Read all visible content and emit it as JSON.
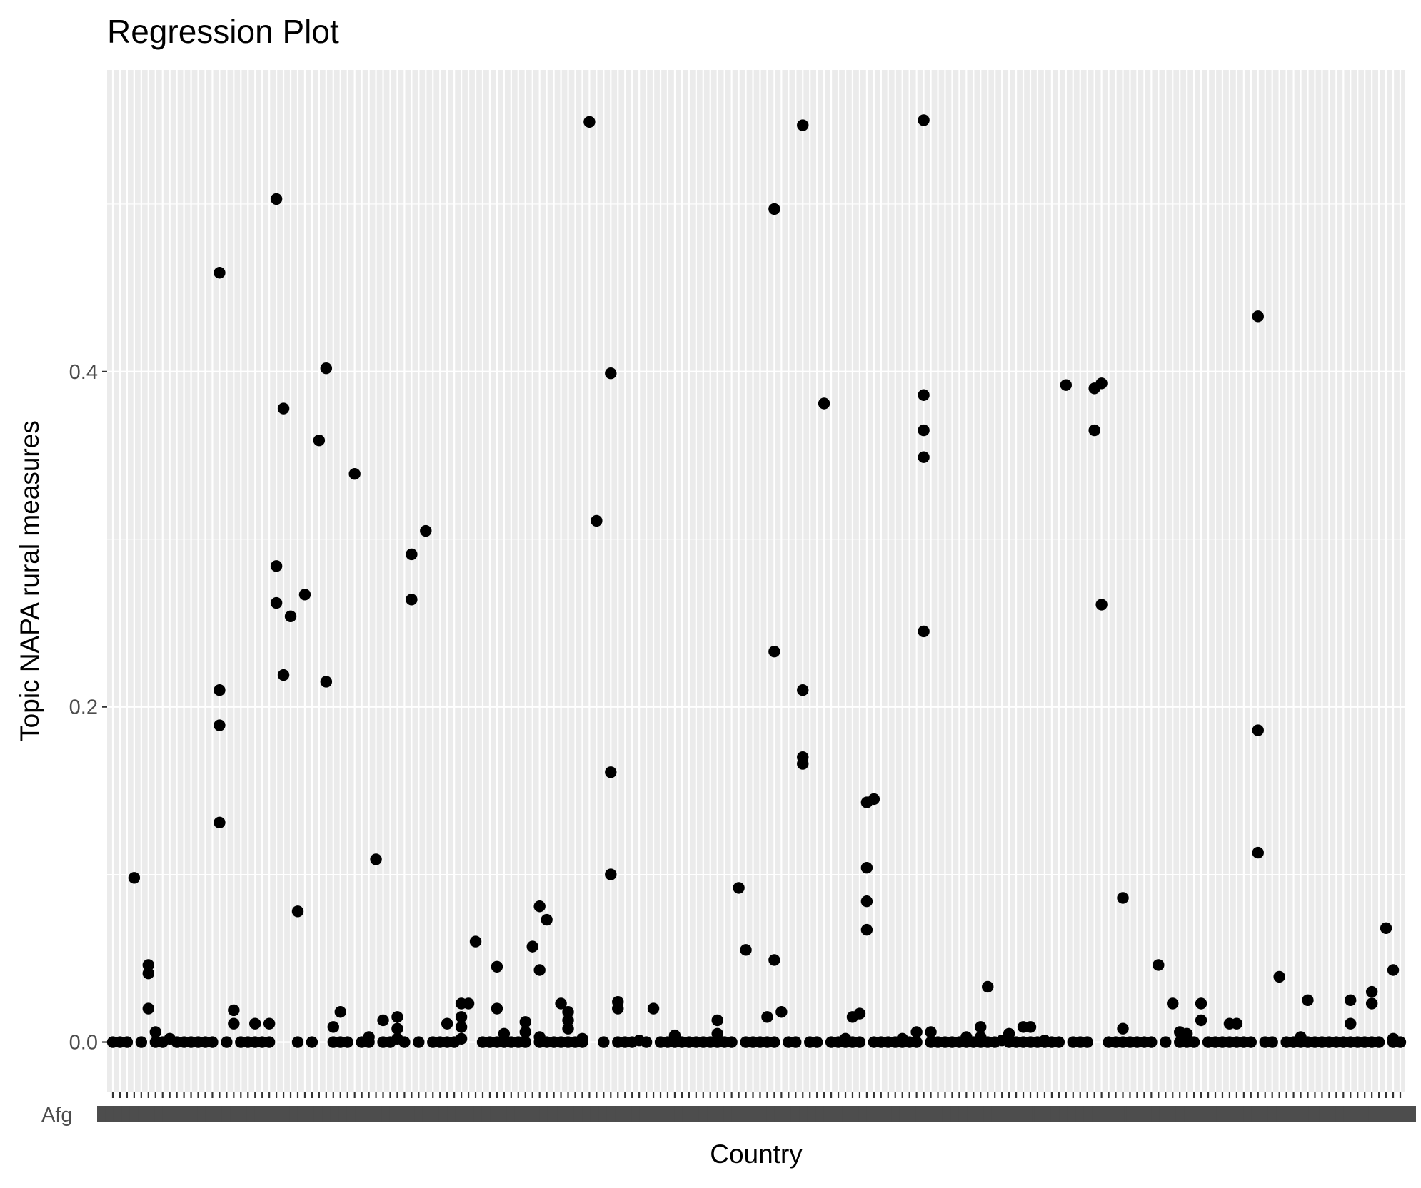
{
  "chart_data": {
    "type": "scatter",
    "title": "Regression Plot",
    "xlabel": "Country",
    "ylabel": "Topic NAPA rural measures",
    "y_ticks": [
      "0.0",
      "0.2",
      "0.4"
    ],
    "ylim": [
      -0.03,
      0.58
    ],
    "x_category_count": 182,
    "x_tick_labels_overlapping": true,
    "first_x_label_visible": "Afg",
    "grid": true,
    "legend": "none",
    "colors": {
      "panel": "#ebebeb",
      "grid": "#ffffff",
      "point": "#000000",
      "tick_text": "#4d4d4d"
    },
    "points": [
      {
        "x": 1,
        "y": 0
      },
      {
        "x": 2,
        "y": 0
      },
      {
        "x": 3,
        "y": 0
      },
      {
        "x": 4,
        "y": 0.098
      },
      {
        "x": 5,
        "y": 0
      },
      {
        "x": 6,
        "y": 0.046
      },
      {
        "x": 6,
        "y": 0.041
      },
      {
        "x": 6,
        "y": 0.02
      },
      {
        "x": 7,
        "y": 0.006
      },
      {
        "x": 7,
        "y": 0
      },
      {
        "x": 8,
        "y": 0
      },
      {
        "x": 9,
        "y": 0.002
      },
      {
        "x": 10,
        "y": 0
      },
      {
        "x": 11,
        "y": 0
      },
      {
        "x": 12,
        "y": 0
      },
      {
        "x": 13,
        "y": 0
      },
      {
        "x": 14,
        "y": 0
      },
      {
        "x": 15,
        "y": 0
      },
      {
        "x": 16,
        "y": 0.459
      },
      {
        "x": 16,
        "y": 0.21
      },
      {
        "x": 16,
        "y": 0.189
      },
      {
        "x": 16,
        "y": 0.131
      },
      {
        "x": 17,
        "y": 0
      },
      {
        "x": 18,
        "y": 0.019
      },
      {
        "x": 18,
        "y": 0.011
      },
      {
        "x": 19,
        "y": 0
      },
      {
        "x": 20,
        "y": 0
      },
      {
        "x": 21,
        "y": 0.011
      },
      {
        "x": 21,
        "y": 0
      },
      {
        "x": 22,
        "y": 0
      },
      {
        "x": 23,
        "y": 0.011
      },
      {
        "x": 23,
        "y": 0
      },
      {
        "x": 24,
        "y": 0.503
      },
      {
        "x": 24,
        "y": 0.284
      },
      {
        "x": 24,
        "y": 0.262
      },
      {
        "x": 25,
        "y": 0.378
      },
      {
        "x": 25,
        "y": 0.219
      },
      {
        "x": 26,
        "y": 0.254
      },
      {
        "x": 27,
        "y": 0.078
      },
      {
        "x": 27,
        "y": 0
      },
      {
        "x": 28,
        "y": 0.267
      },
      {
        "x": 29,
        "y": 0
      },
      {
        "x": 30,
        "y": 0.359
      },
      {
        "x": 31,
        "y": 0.402
      },
      {
        "x": 31,
        "y": 0.215
      },
      {
        "x": 32,
        "y": 0.009
      },
      {
        "x": 32,
        "y": 0
      },
      {
        "x": 33,
        "y": 0.018
      },
      {
        "x": 33,
        "y": 0
      },
      {
        "x": 34,
        "y": 0
      },
      {
        "x": 35,
        "y": 0.339
      },
      {
        "x": 36,
        "y": 0
      },
      {
        "x": 37,
        "y": 0.003
      },
      {
        "x": 37,
        "y": 0
      },
      {
        "x": 38,
        "y": 0.109
      },
      {
        "x": 39,
        "y": 0.013
      },
      {
        "x": 39,
        "y": 0
      },
      {
        "x": 40,
        "y": 0
      },
      {
        "x": 41,
        "y": 0.015
      },
      {
        "x": 41,
        "y": 0.008
      },
      {
        "x": 41,
        "y": 0.002
      },
      {
        "x": 42,
        "y": 0
      },
      {
        "x": 43,
        "y": 0.291
      },
      {
        "x": 43,
        "y": 0.264
      },
      {
        "x": 44,
        "y": 0
      },
      {
        "x": 45,
        "y": 0.305
      },
      {
        "x": 46,
        "y": 0
      },
      {
        "x": 47,
        "y": 0
      },
      {
        "x": 48,
        "y": 0
      },
      {
        "x": 48,
        "y": 0.011
      },
      {
        "x": 49,
        "y": 0
      },
      {
        "x": 50,
        "y": 0.023
      },
      {
        "x": 50,
        "y": 0.015
      },
      {
        "x": 50,
        "y": 0.009
      },
      {
        "x": 50,
        "y": 0.002
      },
      {
        "x": 51,
        "y": 0.023
      },
      {
        "x": 52,
        "y": 0.06
      },
      {
        "x": 53,
        "y": 0
      },
      {
        "x": 54,
        "y": 0
      },
      {
        "x": 55,
        "y": 0.045
      },
      {
        "x": 55,
        "y": 0.02
      },
      {
        "x": 55,
        "y": 0
      },
      {
        "x": 56,
        "y": 0.005
      },
      {
        "x": 56,
        "y": 0
      },
      {
        "x": 57,
        "y": 0
      },
      {
        "x": 58,
        "y": 0
      },
      {
        "x": 59,
        "y": 0.012
      },
      {
        "x": 59,
        "y": 0.006
      },
      {
        "x": 59,
        "y": 0
      },
      {
        "x": 60,
        "y": 0.057
      },
      {
        "x": 61,
        "y": 0.081
      },
      {
        "x": 61,
        "y": 0.043
      },
      {
        "x": 61,
        "y": 0.003
      },
      {
        "x": 61,
        "y": 0
      },
      {
        "x": 62,
        "y": 0.073
      },
      {
        "x": 62,
        "y": 0
      },
      {
        "x": 63,
        "y": 0
      },
      {
        "x": 64,
        "y": 0.023
      },
      {
        "x": 64,
        "y": 0
      },
      {
        "x": 65,
        "y": 0.018
      },
      {
        "x": 65,
        "y": 0.013
      },
      {
        "x": 65,
        "y": 0.008
      },
      {
        "x": 65,
        "y": 0
      },
      {
        "x": 66,
        "y": 0
      },
      {
        "x": 67,
        "y": 0.002
      },
      {
        "x": 67,
        "y": 0
      },
      {
        "x": 68,
        "y": 0.549
      },
      {
        "x": 69,
        "y": 0.311
      },
      {
        "x": 70,
        "y": 0
      },
      {
        "x": 71,
        "y": 0.399
      },
      {
        "x": 71,
        "y": 0.161
      },
      {
        "x": 71,
        "y": 0.1
      },
      {
        "x": 72,
        "y": 0.024
      },
      {
        "x": 72,
        "y": 0.02
      },
      {
        "x": 72,
        "y": 0
      },
      {
        "x": 73,
        "y": 0
      },
      {
        "x": 74,
        "y": 0
      },
      {
        "x": 75,
        "y": 0.001
      },
      {
        "x": 76,
        "y": 0
      },
      {
        "x": 77,
        "y": 0.02
      },
      {
        "x": 78,
        "y": 0
      },
      {
        "x": 79,
        "y": 0
      },
      {
        "x": 80,
        "y": 0.004
      },
      {
        "x": 80,
        "y": 0
      },
      {
        "x": 81,
        "y": 0
      },
      {
        "x": 82,
        "y": 0
      },
      {
        "x": 83,
        "y": 0
      },
      {
        "x": 84,
        "y": 0
      },
      {
        "x": 85,
        "y": 0
      },
      {
        "x": 86,
        "y": 0.013
      },
      {
        "x": 86,
        "y": 0.005
      },
      {
        "x": 86,
        "y": 0
      },
      {
        "x": 87,
        "y": 0
      },
      {
        "x": 88,
        "y": 0
      },
      {
        "x": 89,
        "y": 0.092
      },
      {
        "x": 90,
        "y": 0.055
      },
      {
        "x": 90,
        "y": 0
      },
      {
        "x": 91,
        "y": 0
      },
      {
        "x": 92,
        "y": 0
      },
      {
        "x": 93,
        "y": 0.015
      },
      {
        "x": 93,
        "y": 0
      },
      {
        "x": 94,
        "y": 0.497
      },
      {
        "x": 94,
        "y": 0.233
      },
      {
        "x": 94,
        "y": 0.049
      },
      {
        "x": 94,
        "y": 0
      },
      {
        "x": 95,
        "y": 0.018
      },
      {
        "x": 96,
        "y": 0
      },
      {
        "x": 97,
        "y": 0
      },
      {
        "x": 98,
        "y": 0.547
      },
      {
        "x": 98,
        "y": 0.21
      },
      {
        "x": 98,
        "y": 0.17
      },
      {
        "x": 98,
        "y": 0.166
      },
      {
        "x": 99,
        "y": 0
      },
      {
        "x": 100,
        "y": 0
      },
      {
        "x": 101,
        "y": 0.381
      },
      {
        "x": 102,
        "y": 0
      },
      {
        "x": 103,
        "y": 0
      },
      {
        "x": 104,
        "y": 0.002
      },
      {
        "x": 104,
        "y": 0
      },
      {
        "x": 105,
        "y": 0.015
      },
      {
        "x": 105,
        "y": 0
      },
      {
        "x": 106,
        "y": 0.017
      },
      {
        "x": 106,
        "y": 0
      },
      {
        "x": 107,
        "y": 0.143
      },
      {
        "x": 107,
        "y": 0.104
      },
      {
        "x": 107,
        "y": 0.084
      },
      {
        "x": 107,
        "y": 0.067
      },
      {
        "x": 108,
        "y": 0.145
      },
      {
        "x": 108,
        "y": 0
      },
      {
        "x": 109,
        "y": 0
      },
      {
        "x": 110,
        "y": 0
      },
      {
        "x": 111,
        "y": 0
      },
      {
        "x": 112,
        "y": 0.002
      },
      {
        "x": 112,
        "y": 0
      },
      {
        "x": 113,
        "y": 0
      },
      {
        "x": 114,
        "y": 0.006
      },
      {
        "x": 114,
        "y": 0
      },
      {
        "x": 115,
        "y": 0.55
      },
      {
        "x": 115,
        "y": 0.386
      },
      {
        "x": 115,
        "y": 0.365
      },
      {
        "x": 115,
        "y": 0.349
      },
      {
        "x": 115,
        "y": 0.245
      },
      {
        "x": 116,
        "y": 0.006
      },
      {
        "x": 116,
        "y": 0
      },
      {
        "x": 117,
        "y": 0
      },
      {
        "x": 118,
        "y": 0
      },
      {
        "x": 119,
        "y": 0
      },
      {
        "x": 120,
        "y": 0
      },
      {
        "x": 121,
        "y": 0.003
      },
      {
        "x": 121,
        "y": 0
      },
      {
        "x": 122,
        "y": 0
      },
      {
        "x": 123,
        "y": 0.009
      },
      {
        "x": 123,
        "y": 0.003
      },
      {
        "x": 123,
        "y": 0
      },
      {
        "x": 124,
        "y": 0.033
      },
      {
        "x": 124,
        "y": 0
      },
      {
        "x": 125,
        "y": 0
      },
      {
        "x": 126,
        "y": 0.001
      },
      {
        "x": 127,
        "y": 0.005
      },
      {
        "x": 127,
        "y": 0
      },
      {
        "x": 128,
        "y": 0
      },
      {
        "x": 129,
        "y": 0.009
      },
      {
        "x": 129,
        "y": 0
      },
      {
        "x": 130,
        "y": 0.009
      },
      {
        "x": 130,
        "y": 0
      },
      {
        "x": 131,
        "y": 0
      },
      {
        "x": 132,
        "y": 0.001
      },
      {
        "x": 132,
        "y": 0
      },
      {
        "x": 133,
        "y": 0
      },
      {
        "x": 134,
        "y": 0
      },
      {
        "x": 135,
        "y": 0.392
      },
      {
        "x": 136,
        "y": 0
      },
      {
        "x": 137,
        "y": 0
      },
      {
        "x": 138,
        "y": 0
      },
      {
        "x": 139,
        "y": 0.39
      },
      {
        "x": 139,
        "y": 0.365
      },
      {
        "x": 140,
        "y": 0.393
      },
      {
        "x": 140,
        "y": 0.261
      },
      {
        "x": 141,
        "y": 0
      },
      {
        "x": 142,
        "y": 0
      },
      {
        "x": 143,
        "y": 0.086
      },
      {
        "x": 143,
        "y": 0.008
      },
      {
        "x": 143,
        "y": 0
      },
      {
        "x": 144,
        "y": 0
      },
      {
        "x": 145,
        "y": 0
      },
      {
        "x": 146,
        "y": 0
      },
      {
        "x": 147,
        "y": 0
      },
      {
        "x": 148,
        "y": 0.046
      },
      {
        "x": 149,
        "y": 0
      },
      {
        "x": 150,
        "y": 0.023
      },
      {
        "x": 151,
        "y": 0.006
      },
      {
        "x": 151,
        "y": 0
      },
      {
        "x": 152,
        "y": 0.005
      },
      {
        "x": 152,
        "y": 0
      },
      {
        "x": 153,
        "y": 0
      },
      {
        "x": 154,
        "y": 0.023
      },
      {
        "x": 154,
        "y": 0.013
      },
      {
        "x": 155,
        "y": 0
      },
      {
        "x": 156,
        "y": 0
      },
      {
        "x": 157,
        "y": 0
      },
      {
        "x": 158,
        "y": 0.011
      },
      {
        "x": 158,
        "y": 0
      },
      {
        "x": 159,
        "y": 0.011
      },
      {
        "x": 159,
        "y": 0
      },
      {
        "x": 160,
        "y": 0
      },
      {
        "x": 161,
        "y": 0
      },
      {
        "x": 162,
        "y": 0.433
      },
      {
        "x": 162,
        "y": 0.186
      },
      {
        "x": 162,
        "y": 0.113
      },
      {
        "x": 163,
        "y": 0
      },
      {
        "x": 164,
        "y": 0
      },
      {
        "x": 165,
        "y": 0.039
      },
      {
        "x": 166,
        "y": 0
      },
      {
        "x": 167,
        "y": 0
      },
      {
        "x": 168,
        "y": 0.003
      },
      {
        "x": 168,
        "y": 0
      },
      {
        "x": 169,
        "y": 0.025
      },
      {
        "x": 169,
        "y": 0
      },
      {
        "x": 170,
        "y": 0
      },
      {
        "x": 171,
        "y": 0
      },
      {
        "x": 172,
        "y": 0
      },
      {
        "x": 173,
        "y": 0
      },
      {
        "x": 174,
        "y": 0
      },
      {
        "x": 175,
        "y": 0.025
      },
      {
        "x": 175,
        "y": 0.011
      },
      {
        "x": 175,
        "y": 0
      },
      {
        "x": 176,
        "y": 0
      },
      {
        "x": 177,
        "y": 0
      },
      {
        "x": 178,
        "y": 0.03
      },
      {
        "x": 178,
        "y": 0.023
      },
      {
        "x": 178,
        "y": 0
      },
      {
        "x": 179,
        "y": 0
      },
      {
        "x": 180,
        "y": 0.068
      },
      {
        "x": 181,
        "y": 0.043
      },
      {
        "x": 181,
        "y": 0.002
      },
      {
        "x": 181,
        "y": 0
      },
      {
        "x": 182,
        "y": 0
      }
    ]
  }
}
